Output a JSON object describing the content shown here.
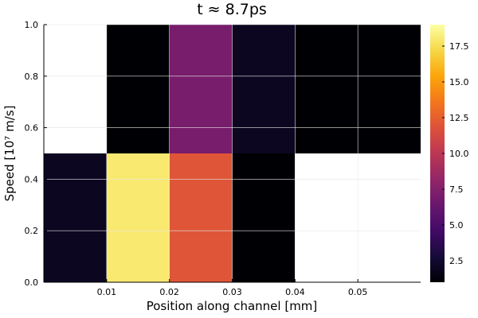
{
  "chart_data": {
    "type": "heatmap",
    "title": "t ≈ 8.7ps",
    "xlabel": "Position along channel [mm]",
    "ylabel": "Speed [10⁷ m/s]",
    "xlim": [
      0,
      0.06
    ],
    "ylim": [
      0,
      1.0
    ],
    "x_ticks": [
      "0.01",
      "0.02",
      "0.03",
      "0.04",
      "0.05"
    ],
    "y_ticks": [
      "0.0",
      "0.2",
      "0.4",
      "0.6",
      "0.8",
      "1.0"
    ],
    "x_tick_values": [
      0.01,
      0.02,
      0.03,
      0.04,
      0.05
    ],
    "y_tick_values": [
      0,
      0.2,
      0.4,
      0.6,
      0.8,
      1.0
    ],
    "x_edges": [
      0,
      0.01,
      0.02,
      0.03,
      0.04,
      0.06
    ],
    "y_edges": [
      0,
      0.5,
      1.0
    ],
    "cells": [
      {
        "x0": 0.0,
        "x1": 0.01,
        "y0": 0.0,
        "y1": 0.5,
        "value": 2
      },
      {
        "x0": 0.01,
        "x1": 0.02,
        "y0": 0.0,
        "y1": 0.5,
        "value": 18
      },
      {
        "x0": 0.02,
        "x1": 0.03,
        "y0": 0.0,
        "y1": 0.5,
        "value": 12
      },
      {
        "x0": 0.03,
        "x1": 0.04,
        "y0": 0.0,
        "y1": 0.5,
        "value": 1
      },
      {
        "x0": 0.04,
        "x1": 0.06,
        "y0": 0.0,
        "y1": 0.5,
        "value": null
      },
      {
        "x0": 0.0,
        "x1": 0.01,
        "y0": 0.5,
        "y1": 1.0,
        "value": null
      },
      {
        "x0": 0.01,
        "x1": 0.02,
        "y0": 0.5,
        "y1": 1.0,
        "value": 1
      },
      {
        "x0": 0.02,
        "x1": 0.03,
        "y0": 0.5,
        "y1": 1.0,
        "value": 7
      },
      {
        "x0": 0.03,
        "x1": 0.04,
        "y0": 0.5,
        "y1": 1.0,
        "value": 2
      },
      {
        "x0": 0.04,
        "x1": 0.06,
        "y0": 0.5,
        "y1": 1.0,
        "value": 1
      }
    ],
    "colorbar": {
      "colormap": "inferno",
      "range": [
        1,
        19
      ],
      "ticks": [
        "2.5",
        "5.0",
        "7.5",
        "10.0",
        "12.5",
        "15.0",
        "17.5"
      ],
      "tick_values": [
        2.5,
        5.0,
        7.5,
        10.0,
        12.5,
        15.0,
        17.5
      ]
    },
    "grid": true,
    "legend": "none"
  }
}
